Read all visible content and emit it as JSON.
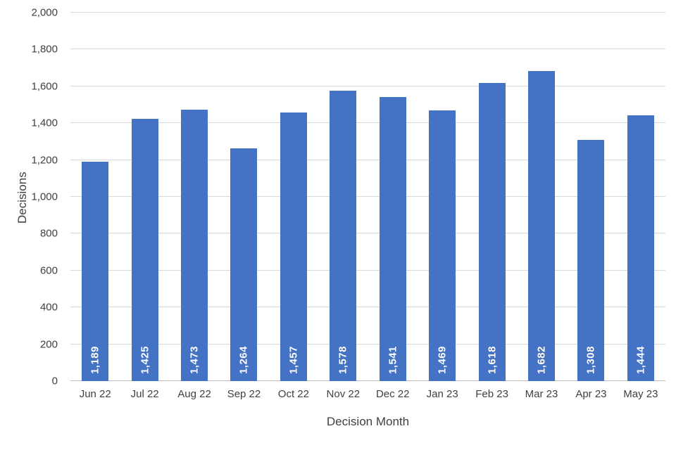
{
  "chart_data": {
    "type": "bar",
    "title": "",
    "xlabel": "Decision Month",
    "ylabel": "Decisions",
    "categories": [
      "Jun 22",
      "Jul 22",
      "Aug 22",
      "Sep 22",
      "Oct 22",
      "Nov 22",
      "Dec 22",
      "Jan 23",
      "Feb 23",
      "Mar 23",
      "Apr 23",
      "May 23"
    ],
    "values": [
      1189,
      1425,
      1473,
      1264,
      1457,
      1578,
      1541,
      1469,
      1618,
      1682,
      1308,
      1444
    ],
    "value_labels": [
      "1,189",
      "1,425",
      "1,473",
      "1,264",
      "1,457",
      "1,578",
      "1,541",
      "1,469",
      "1,618",
      "1,682",
      "1,308",
      "1,444"
    ],
    "ylim": [
      0,
      2000
    ],
    "ytick_step": 200,
    "ytick_labels": [
      "0",
      "200",
      "400",
      "600",
      "800",
      "1,000",
      "1,200",
      "1,400",
      "1,600",
      "1,800",
      "2,000"
    ],
    "grid": true,
    "legend": "none",
    "bar_color": "#4472C4",
    "value_label_color": "#FFFFFF",
    "grid_color": "#D9D9D9",
    "axis_line_color": "#BFBFBF",
    "text_color": "#404040"
  }
}
